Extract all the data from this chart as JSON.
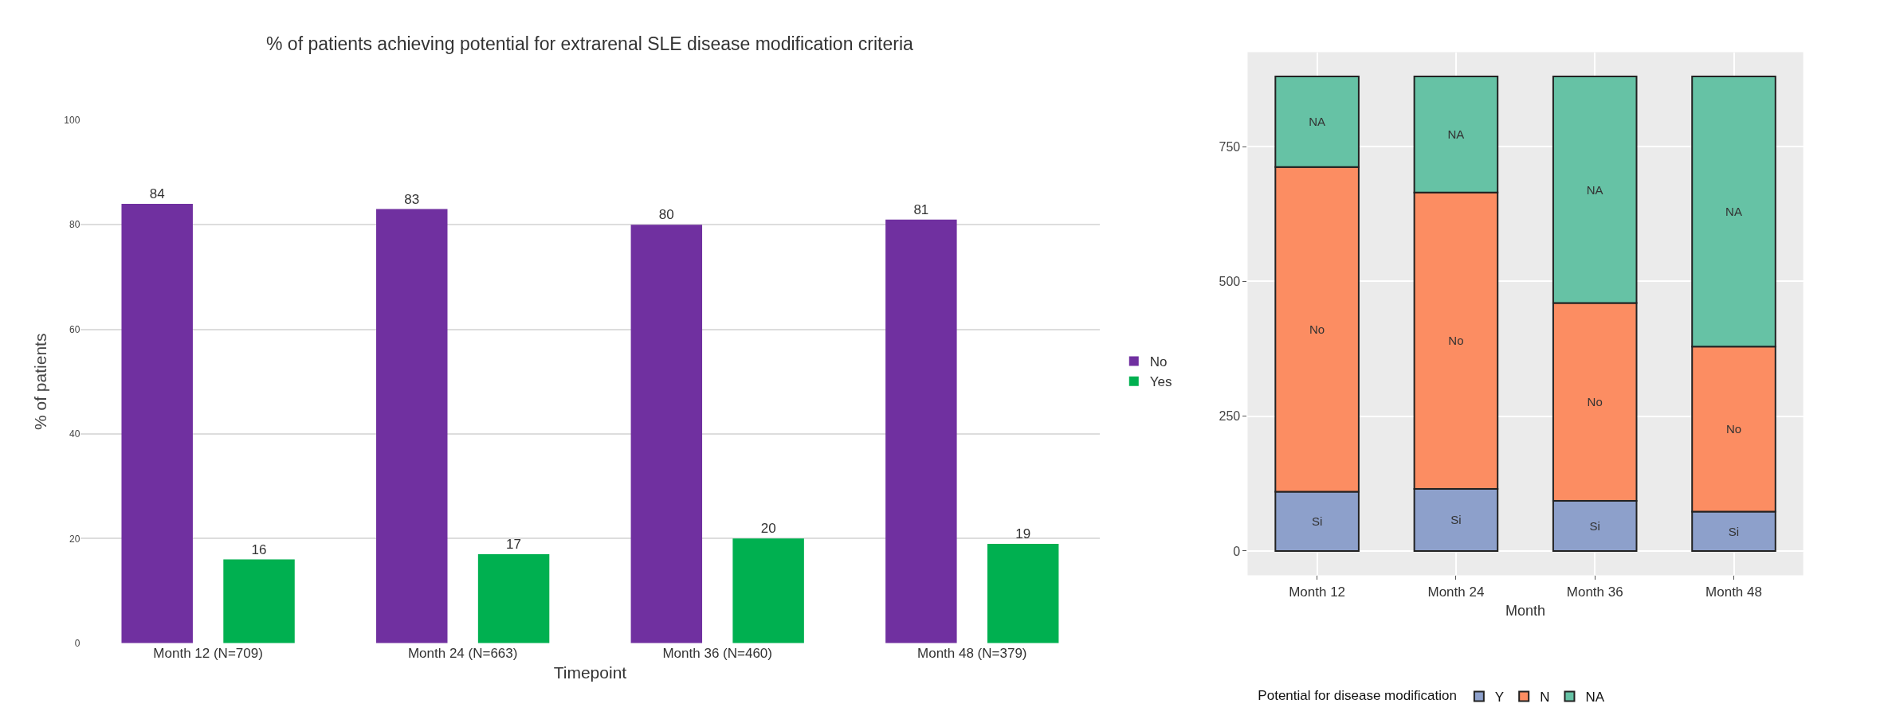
{
  "chart_data": [
    {
      "type": "bar",
      "title": "% of patients achieving potential for extrarenal SLE disease modification criteria",
      "xlabel": "Timepoint",
      "ylabel": "% of patients",
      "categories": [
        "Month 12 (N=709)",
        "Month 24 (N=663)",
        "Month 36 (N=460)",
        "Month 48 (N=379)"
      ],
      "series": [
        {
          "name": "No",
          "color": "#7030a0",
          "values": [
            84,
            83,
            80,
            81
          ]
        },
        {
          "name": "Yes",
          "color": "#00b050",
          "values": [
            16,
            17,
            20,
            19
          ]
        }
      ],
      "ylim": [
        0,
        100
      ],
      "yticks": [
        0,
        20,
        40,
        60,
        80,
        100
      ],
      "grid": "y",
      "legend": "right",
      "data_labels": true
    },
    {
      "type": "bar",
      "stacked": true,
      "xlabel": "Month",
      "legend_title": "Potential for disease modification",
      "categories": [
        "Month 12",
        "Month 24",
        "Month 36",
        "Month 48"
      ],
      "series": [
        {
          "name": "Y",
          "color": "#8da0cb",
          "values": [
            110,
            115,
            93,
            73
          ],
          "value_labels": [
            "Si",
            "Si",
            "Si",
            "Si"
          ]
        },
        {
          "name": "N",
          "color": "#fc8d62",
          "values": [
            602,
            550,
            367,
            306
          ],
          "value_labels": [
            "No",
            "No",
            "No",
            "No"
          ]
        },
        {
          "name": "NA",
          "color": "#66c2a5",
          "values": [
            168,
            215,
            420,
            501
          ],
          "value_labels": [
            "NA",
            "NA",
            "NA",
            "NA"
          ]
        }
      ],
      "ylim": [
        -45,
        925
      ],
      "yticks": [
        0,
        250,
        500,
        750
      ],
      "grid": true,
      "legend": "bottom"
    }
  ]
}
